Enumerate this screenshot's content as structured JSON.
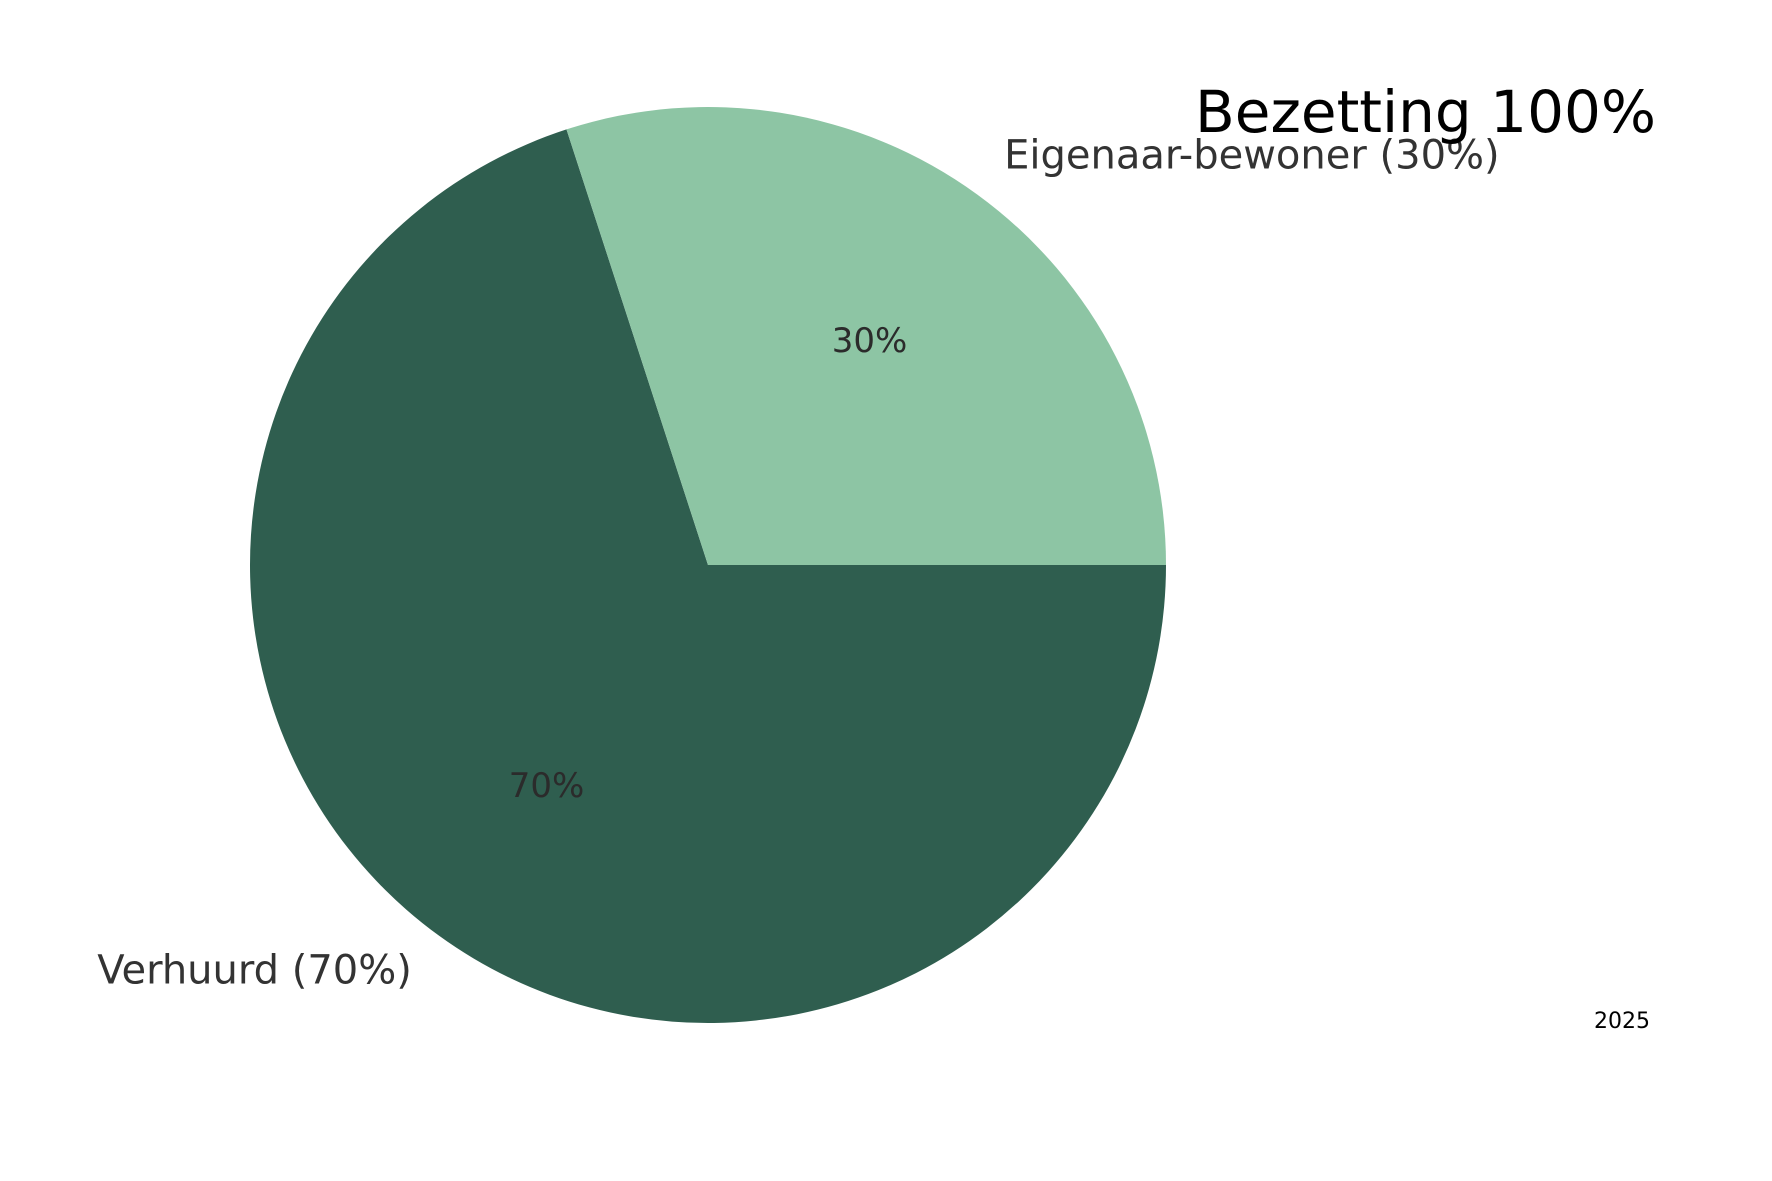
{
  "colors": {
    "background": "#ffffff",
    "slice_dark": "#2f5e4f",
    "slice_light": "#8dc5a4"
  },
  "chart_data": {
    "type": "pie",
    "title": "Bezetting 100%",
    "footnote": "2025",
    "slices": [
      {
        "label": "Verhuurd (70%)",
        "value": 70,
        "pct_label": "70%",
        "color": "#2f5e4f"
      },
      {
        "label": "Eigenaar-bewoner (30%)",
        "value": 30,
        "pct_label": "30%",
        "color": "#8dc5a4"
      }
    ],
    "start_angle_deg": 0,
    "direction": "clockwise",
    "legend": "none"
  }
}
